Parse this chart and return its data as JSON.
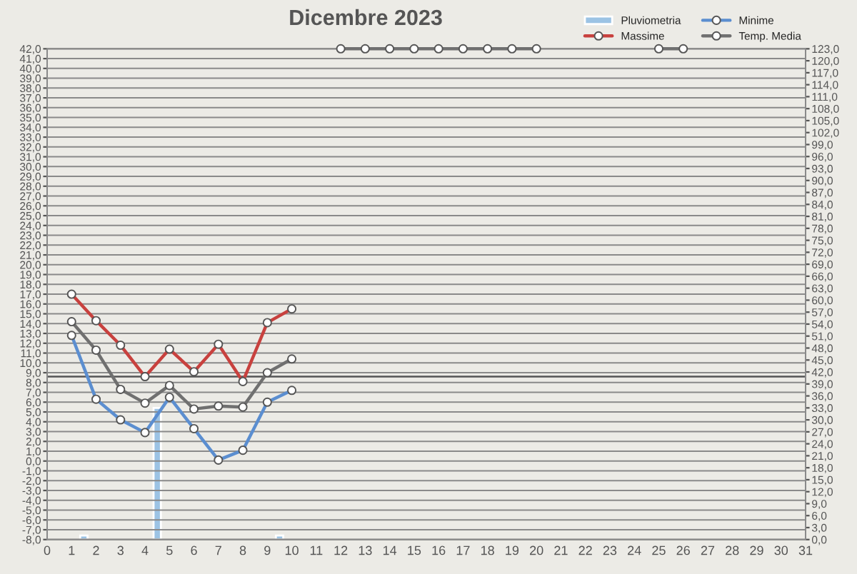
{
  "chart_data": {
    "type": "line",
    "title": "Dicembre 2023",
    "xlim": [
      0,
      31
    ],
    "xticks": [
      0,
      1,
      2,
      3,
      4,
      5,
      6,
      7,
      8,
      9,
      10,
      11,
      12,
      13,
      14,
      15,
      16,
      17,
      18,
      19,
      20,
      21,
      22,
      23,
      24,
      25,
      26,
      27,
      28,
      29,
      30,
      31
    ],
    "ylim": [
      -8,
      42
    ],
    "yticks": [
      {
        "value": -8,
        "label": "-8,0"
      },
      {
        "value": -7,
        "label": "-7,0"
      },
      {
        "value": -6,
        "label": "-6,0"
      },
      {
        "value": -5,
        "label": "-5,0"
      },
      {
        "value": -4,
        "label": "-4,0"
      },
      {
        "value": -3,
        "label": "-3,0"
      },
      {
        "value": -2,
        "label": "-2,0"
      },
      {
        "value": -1,
        "label": "-1,0"
      },
      {
        "value": 0,
        "label": "0,0"
      },
      {
        "value": 1,
        "label": "1,0"
      },
      {
        "value": 2,
        "label": "2,0"
      },
      {
        "value": 3,
        "label": "3,0"
      },
      {
        "value": 4,
        "label": "4,0"
      },
      {
        "value": 5,
        "label": "5,0"
      },
      {
        "value": 6,
        "label": "6,0"
      },
      {
        "value": 7,
        "label": "7,0"
      },
      {
        "value": 8,
        "label": "8,0"
      },
      {
        "value": 9,
        "label": "9,0"
      },
      {
        "value": 10,
        "label": "10,0"
      },
      {
        "value": 11,
        "label": "11,0"
      },
      {
        "value": 12,
        "label": "12,0"
      },
      {
        "value": 13,
        "label": "13,0"
      },
      {
        "value": 14,
        "label": "14,0"
      },
      {
        "value": 15,
        "label": "15,0"
      },
      {
        "value": 16,
        "label": "16,0"
      },
      {
        "value": 17,
        "label": "17,0"
      },
      {
        "value": 18,
        "label": "18,0"
      },
      {
        "value": 19,
        "label": "19,0"
      },
      {
        "value": 20,
        "label": "20,0"
      },
      {
        "value": 21,
        "label": "21,0"
      },
      {
        "value": 22,
        "label": "22,0"
      },
      {
        "value": 23,
        "label": "23,0"
      },
      {
        "value": 24,
        "label": "24,0"
      },
      {
        "value": 25,
        "label": "25,0"
      },
      {
        "value": 26,
        "label": "26,0"
      },
      {
        "value": 27,
        "label": "27,0"
      },
      {
        "value": 28,
        "label": "28,0"
      },
      {
        "value": 29,
        "label": "29,0"
      },
      {
        "value": 30,
        "label": "30,0"
      },
      {
        "value": 31,
        "label": "31,0"
      },
      {
        "value": 32,
        "label": "32,0"
      },
      {
        "value": 33,
        "label": "33,0"
      },
      {
        "value": 34,
        "label": "34,0"
      },
      {
        "value": 35,
        "label": "35,0"
      },
      {
        "value": 36,
        "label": "36,0"
      },
      {
        "value": 37,
        "label": "37,0"
      },
      {
        "value": 38,
        "label": "38,0"
      },
      {
        "value": 39,
        "label": "39,0"
      },
      {
        "value": 40,
        "label": "40,0"
      },
      {
        "value": 41,
        "label": "41,0"
      },
      {
        "value": 42,
        "label": "42,0"
      }
    ],
    "y2lim": [
      0,
      123
    ],
    "y2ticks": [
      {
        "value": 0,
        "label": "0,0"
      },
      {
        "value": 3,
        "label": "3,0"
      },
      {
        "value": 6,
        "label": "6,0"
      },
      {
        "value": 9,
        "label": "9,0"
      },
      {
        "value": 12,
        "label": "12,0"
      },
      {
        "value": 15,
        "label": "15,0"
      },
      {
        "value": 18,
        "label": "18,0"
      },
      {
        "value": 21,
        "label": "21,0"
      },
      {
        "value": 24,
        "label": "24,0"
      },
      {
        "value": 27,
        "label": "27,0"
      },
      {
        "value": 30,
        "label": "30,0"
      },
      {
        "value": 33,
        "label": "33,0"
      },
      {
        "value": 36,
        "label": "36,0"
      },
      {
        "value": 39,
        "label": "39,0"
      },
      {
        "value": 42,
        "label": "42,0"
      },
      {
        "value": 45,
        "label": "45,0"
      },
      {
        "value": 48,
        "label": "48,0"
      },
      {
        "value": 51,
        "label": "51,0"
      },
      {
        "value": 54,
        "label": "54,0"
      },
      {
        "value": 57,
        "label": "57,0"
      },
      {
        "value": 60,
        "label": "60,0"
      },
      {
        "value": 63,
        "label": "63,0"
      },
      {
        "value": 66,
        "label": "66,0"
      },
      {
        "value": 69,
        "label": "69,0"
      },
      {
        "value": 72,
        "label": "72,0"
      },
      {
        "value": 75,
        "label": "75,0"
      },
      {
        "value": 78,
        "label": "78,0"
      },
      {
        "value": 81,
        "label": "81,0"
      },
      {
        "value": 84,
        "label": "84,0"
      },
      {
        "value": 87,
        "label": "87,0"
      },
      {
        "value": 90,
        "label": "90,0"
      },
      {
        "value": 93,
        "label": "93,0"
      },
      {
        "value": 96,
        "label": "96,0"
      },
      {
        "value": 99,
        "label": "99,0"
      },
      {
        "value": 102,
        "label": "102,0"
      },
      {
        "value": 105,
        "label": "105,0"
      },
      {
        "value": 108,
        "label": "108,0"
      },
      {
        "value": 111,
        "label": "111,0"
      },
      {
        "value": 114,
        "label": "114,0"
      },
      {
        "value": 117,
        "label": "117,0"
      },
      {
        "value": 120,
        "label": "120,0"
      },
      {
        "value": 123,
        "label": "123,0"
      }
    ],
    "grid": "y",
    "legend": "top right",
    "marker": "circle",
    "ref_lines": [
      {
        "axis": "y",
        "value": 8.6,
        "color": "#555555"
      }
    ],
    "series": [
      {
        "name": "Pluviometria",
        "type": "bar",
        "axis": "y2",
        "color": "#9cc3e4",
        "x": [
          1.5,
          4.5,
          9.5
        ],
        "values": [
          1,
          33,
          1
        ]
      },
      {
        "name": "Massime",
        "color": "#c8413e",
        "x": [
          1,
          2,
          3,
          4,
          5,
          6,
          7,
          8,
          9,
          10
        ],
        "values": [
          17.0,
          14.3,
          11.8,
          8.6,
          11.4,
          9.1,
          11.9,
          8.1,
          14.1,
          15.5
        ]
      },
      {
        "name": "Minime",
        "color": "#5b8ed0",
        "x": [
          1,
          2,
          3,
          4,
          5,
          6,
          7,
          8,
          9,
          10
        ],
        "values": [
          12.8,
          6.3,
          4.2,
          2.9,
          6.5,
          3.3,
          0.1,
          1.1,
          6.0,
          7.2
        ]
      },
      {
        "name": "Temp. Media",
        "color": "#707070",
        "x": [
          1,
          2,
          3,
          4,
          5,
          6,
          7,
          8,
          9,
          10,
          11,
          12,
          13,
          14,
          15,
          16,
          17,
          18,
          19,
          20,
          21,
          22,
          23,
          24,
          25,
          26
        ],
        "values": [
          14.2,
          11.3,
          7.3,
          5.9,
          7.7,
          5.3,
          5.6,
          5.5,
          9.0,
          10.4,
          null,
          42,
          42,
          42,
          42,
          42,
          42,
          42,
          42,
          42,
          null,
          null,
          null,
          null,
          42,
          42
        ]
      }
    ]
  }
}
